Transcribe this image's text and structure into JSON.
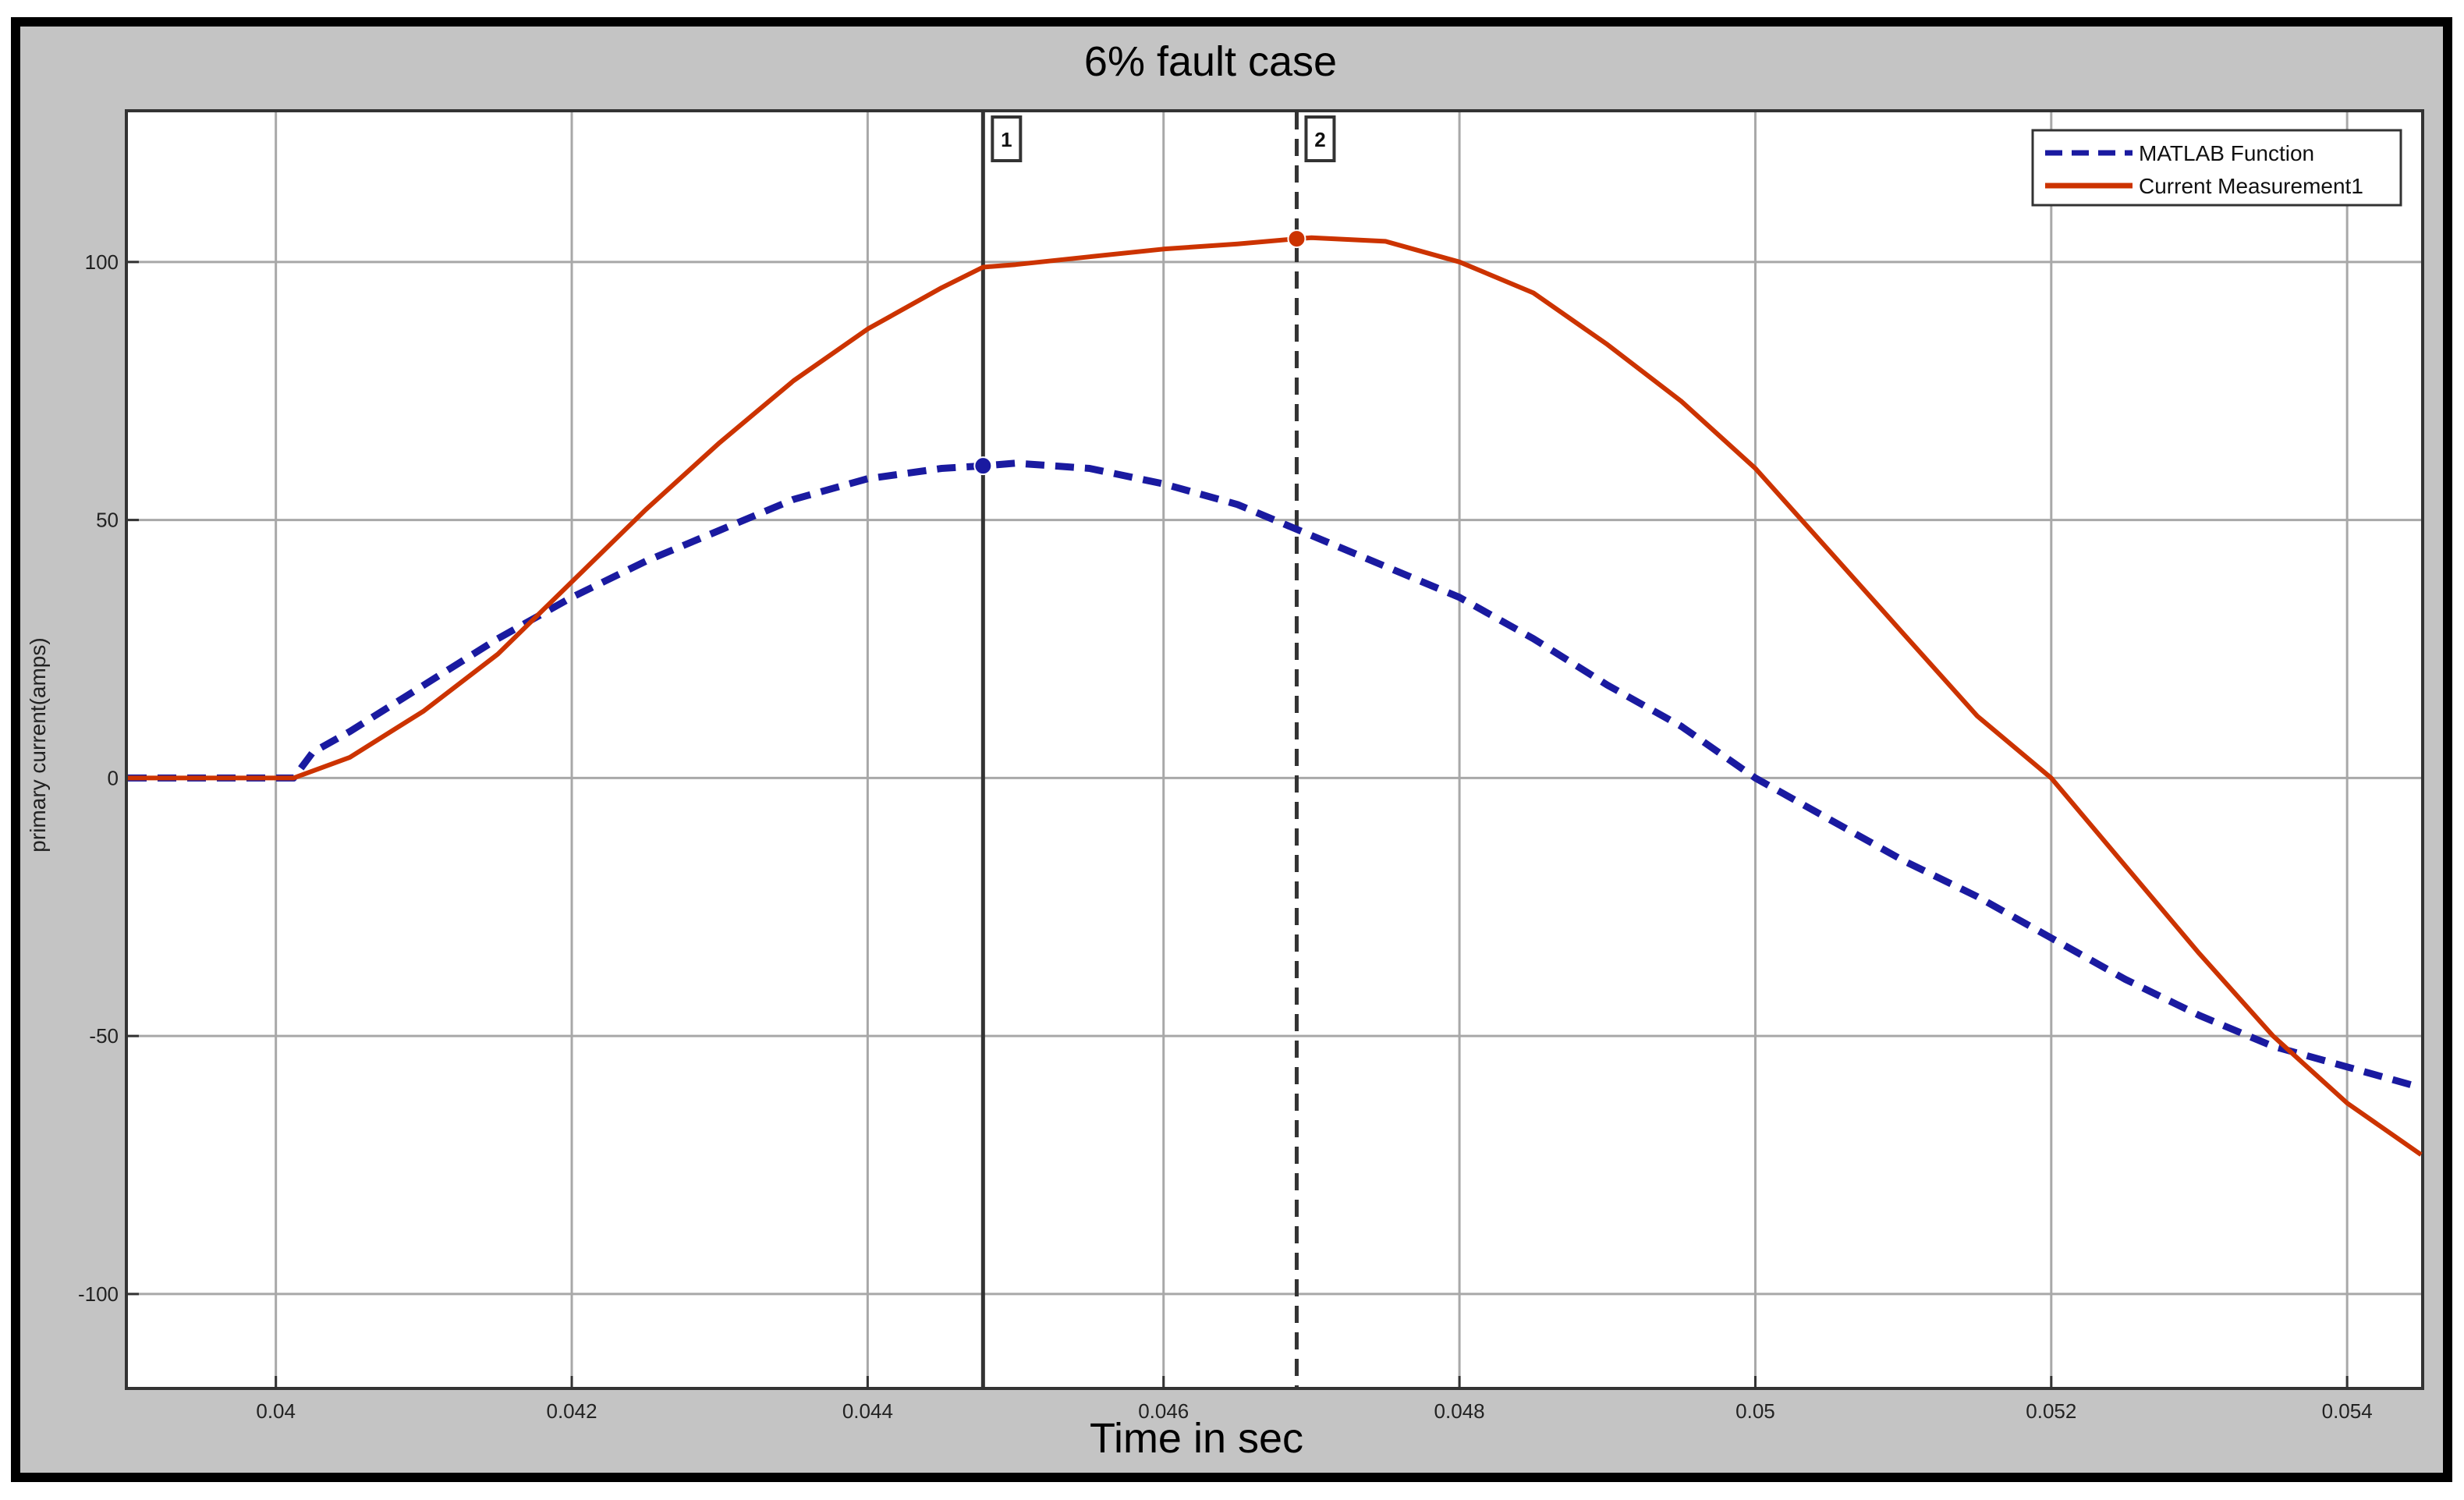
{
  "chart_data": {
    "type": "line",
    "title": "6% fault case",
    "xlabel": "Time in sec",
    "ylabel": "primary current(amps)",
    "xlim": [
      0.039,
      0.0545
    ],
    "ylim": [
      -118,
      129
    ],
    "x_ticks": [
      0.04,
      0.042,
      0.044,
      0.046,
      0.048,
      0.05,
      0.052,
      0.054
    ],
    "x_tick_labels": [
      "0.04",
      "0.042",
      "0.044",
      "0.046",
      "0.048",
      "0.05",
      "0.052",
      "0.054"
    ],
    "y_ticks": [
      100,
      50,
      0,
      -50,
      -100
    ],
    "y_tick_labels": [
      "100",
      "50",
      "0",
      "-50",
      "-100"
    ],
    "grid": true,
    "legend_position": "top-right",
    "cursors": [
      {
        "label": "1",
        "x": 0.04478,
        "style": "solid"
      },
      {
        "label": "2",
        "x": 0.0469,
        "style": "dashed"
      }
    ],
    "markers": [
      {
        "series": "MATLAB Function",
        "x": 0.04478,
        "y": 60.5
      },
      {
        "series": "Current Measurement1",
        "x": 0.0469,
        "y": 104.5
      }
    ],
    "series": [
      {
        "name": "MATLAB Function",
        "color": "#1a1aa0",
        "style": "dashed",
        "x": [
          0.039,
          0.0395,
          0.04,
          0.04012,
          0.04025,
          0.0405,
          0.041,
          0.0415,
          0.042,
          0.0425,
          0.043,
          0.0435,
          0.044,
          0.0445,
          0.04478,
          0.045,
          0.0455,
          0.046,
          0.0465,
          0.047,
          0.0475,
          0.048,
          0.0485,
          0.049,
          0.0495,
          0.05,
          0.0505,
          0.051,
          0.0515,
          0.052,
          0.0525,
          0.053,
          0.0535,
          0.054,
          0.0545
        ],
        "y": [
          0,
          0,
          0,
          0,
          5,
          9,
          18,
          27,
          35,
          42,
          48,
          54,
          58,
          60,
          60.5,
          61,
          60,
          57,
          53,
          47,
          41,
          35,
          27,
          18,
          10,
          0,
          -8,
          -16,
          -23,
          -31,
          -39,
          -46,
          -52,
          -56,
          -60
        ]
      },
      {
        "name": "Current Measurement1",
        "color": "#cc3300",
        "style": "solid",
        "x": [
          0.039,
          0.0395,
          0.04,
          0.04012,
          0.0405,
          0.041,
          0.0415,
          0.042,
          0.0425,
          0.043,
          0.0435,
          0.044,
          0.0445,
          0.04478,
          0.045,
          0.0455,
          0.046,
          0.0465,
          0.0469,
          0.047,
          0.0475,
          0.048,
          0.0485,
          0.049,
          0.0495,
          0.05,
          0.0505,
          0.051,
          0.0515,
          0.052,
          0.0525,
          0.053,
          0.0535,
          0.054,
          0.0545
        ],
        "y": [
          0,
          0,
          0,
          0,
          4,
          13,
          24,
          38,
          52,
          65,
          77,
          87,
          95,
          99,
          99.5,
          101,
          102.5,
          103.5,
          104.5,
          104.7,
          104,
          100,
          94,
          84,
          73,
          60,
          44,
          28,
          12,
          0,
          -17,
          -34,
          -50,
          -63,
          -73
        ]
      }
    ]
  }
}
